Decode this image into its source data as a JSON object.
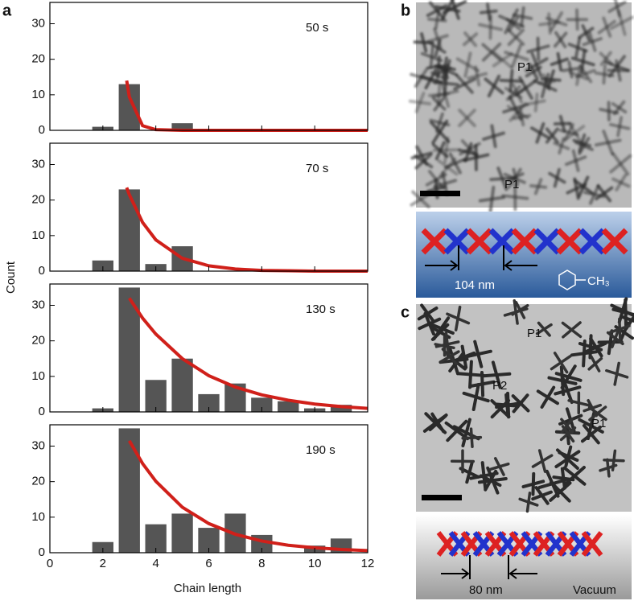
{
  "chart_data": [
    {
      "type": "bar",
      "annotation": "50 s",
      "xlim": [
        0,
        12
      ],
      "ylim": [
        0,
        36
      ],
      "xticks": [
        0,
        2,
        4,
        6,
        8,
        10,
        12
      ],
      "yticks": [
        0,
        10,
        20,
        30
      ],
      "color": "#555555",
      "x": [
        2,
        3,
        5
      ],
      "values": [
        1,
        13,
        2
      ],
      "fit": {
        "color": "#d0201a",
        "x": [
          2.9,
          3,
          3.5,
          4,
          5,
          6,
          7,
          8,
          9,
          10,
          11,
          12
        ],
        "values": [
          14,
          9.4,
          1.3,
          0.2,
          0,
          0,
          0,
          0,
          0,
          0,
          0,
          0
        ]
      }
    },
    {
      "type": "bar",
      "annotation": "70 s",
      "xlim": [
        0,
        12
      ],
      "ylim": [
        0,
        36
      ],
      "xticks": [
        0,
        2,
        4,
        6,
        8,
        10,
        12
      ],
      "yticks": [
        0,
        10,
        20,
        30
      ],
      "color": "#555555",
      "x": [
        2,
        3,
        4,
        5
      ],
      "values": [
        3,
        23,
        2,
        7
      ],
      "fit": {
        "color": "#d0201a",
        "x": [
          2.9,
          3,
          3.5,
          4,
          5,
          6,
          7,
          8,
          9,
          10,
          11,
          12
        ],
        "values": [
          23.5,
          21.5,
          13.7,
          8.8,
          3.6,
          1.5,
          0.6,
          0.2,
          0.1,
          0,
          0,
          0
        ]
      }
    },
    {
      "type": "bar",
      "annotation": "130 s",
      "xlim": [
        0,
        12
      ],
      "ylim": [
        0,
        36
      ],
      "xticks": [
        0,
        2,
        4,
        6,
        8,
        10,
        12
      ],
      "yticks": [
        0,
        10,
        20,
        30
      ],
      "color": "#555555",
      "x": [
        2,
        3,
        4,
        5,
        6,
        7,
        8,
        9,
        10,
        11
      ],
      "values": [
        1,
        35,
        9,
        15,
        5,
        8,
        4,
        3,
        1,
        2
      ],
      "fit": {
        "color": "#d0201a",
        "x": [
          3,
          3.5,
          4,
          5,
          6,
          7,
          8,
          9,
          10,
          11,
          12
        ],
        "values": [
          32,
          26.4,
          21.9,
          15,
          10.2,
          7,
          4.8,
          3.3,
          2.2,
          1.5,
          1
        ]
      }
    },
    {
      "type": "bar",
      "annotation": "190 s",
      "xlim": [
        0,
        12
      ],
      "ylim": [
        0,
        36
      ],
      "xticks": [
        0,
        2,
        4,
        6,
        8,
        10,
        12
      ],
      "yticks": [
        0,
        10,
        20,
        30
      ],
      "color": "#555555",
      "x": [
        2,
        3,
        4,
        5,
        6,
        7,
        8,
        10,
        11
      ],
      "values": [
        3,
        35,
        8,
        11,
        7,
        11,
        5,
        2,
        4
      ],
      "fit": {
        "color": "#d0201a",
        "x": [
          3,
          3.5,
          4,
          5,
          6,
          7,
          8,
          9,
          10,
          11,
          12
        ],
        "values": [
          31.5,
          25.1,
          20.1,
          12.8,
          8.2,
          5.2,
          3.3,
          2.1,
          1.4,
          0.9,
          0.6
        ]
      }
    }
  ],
  "figure": {
    "label_a": "a",
    "ylabel": "Count",
    "xlabel": "Chain length"
  },
  "panel_b": {
    "label": "b",
    "p1_top": "P1",
    "p1_bottom": "P1",
    "spacing": "104 nm",
    "solvent": "CH₃"
  },
  "panel_c": {
    "label": "c",
    "p1_top": "P1",
    "p2": "P2",
    "p1_right": "P1",
    "spacing": "80 nm",
    "medium": "Vacuum"
  }
}
